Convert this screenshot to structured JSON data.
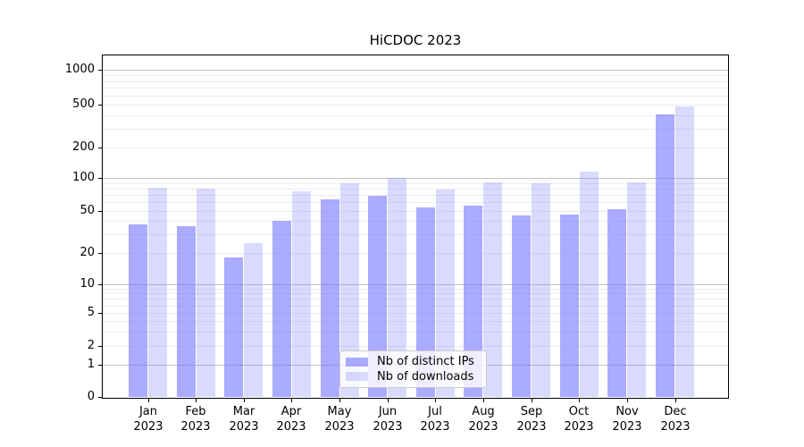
{
  "chart_data": {
    "type": "bar",
    "title": "HiCDOC 2023",
    "categories": [
      "Jan 2023",
      "Feb 2023",
      "Mar 2023",
      "Apr 2023",
      "May 2023",
      "Jun 2023",
      "Jul 2023",
      "Aug 2023",
      "Sep 2023",
      "Oct 2023",
      "Nov 2023",
      "Dec 2023"
    ],
    "series": [
      {
        "name": "Nb of distinct IPs",
        "color": "rgba(119,119,255,0.62)",
        "color_hex": "#abaaf8",
        "values": [
          37,
          36,
          18,
          40,
          64,
          69,
          54,
          56,
          45,
          46,
          52,
          405
        ]
      },
      {
        "name": "Nb of downloads",
        "color": "rgba(119,119,255,0.27)",
        "color_hex": "#dad9f9",
        "values": [
          81,
          80,
          25,
          76,
          89,
          101,
          78,
          91,
          90,
          115,
          91,
          480
        ]
      }
    ],
    "xlabel": "",
    "ylabel": "",
    "yscale": "symlog",
    "yticks": [
      0,
      1,
      2,
      5,
      10,
      20,
      50,
      100,
      200,
      500,
      1000
    ],
    "ylim": [
      0,
      1350
    ],
    "grid": true,
    "legend_position": "lower center",
    "colors": {
      "major_grid": "#c3c3c3",
      "minor_grid": "#ececec",
      "axis": "#000000",
      "legend_border": "#cccccc"
    }
  }
}
